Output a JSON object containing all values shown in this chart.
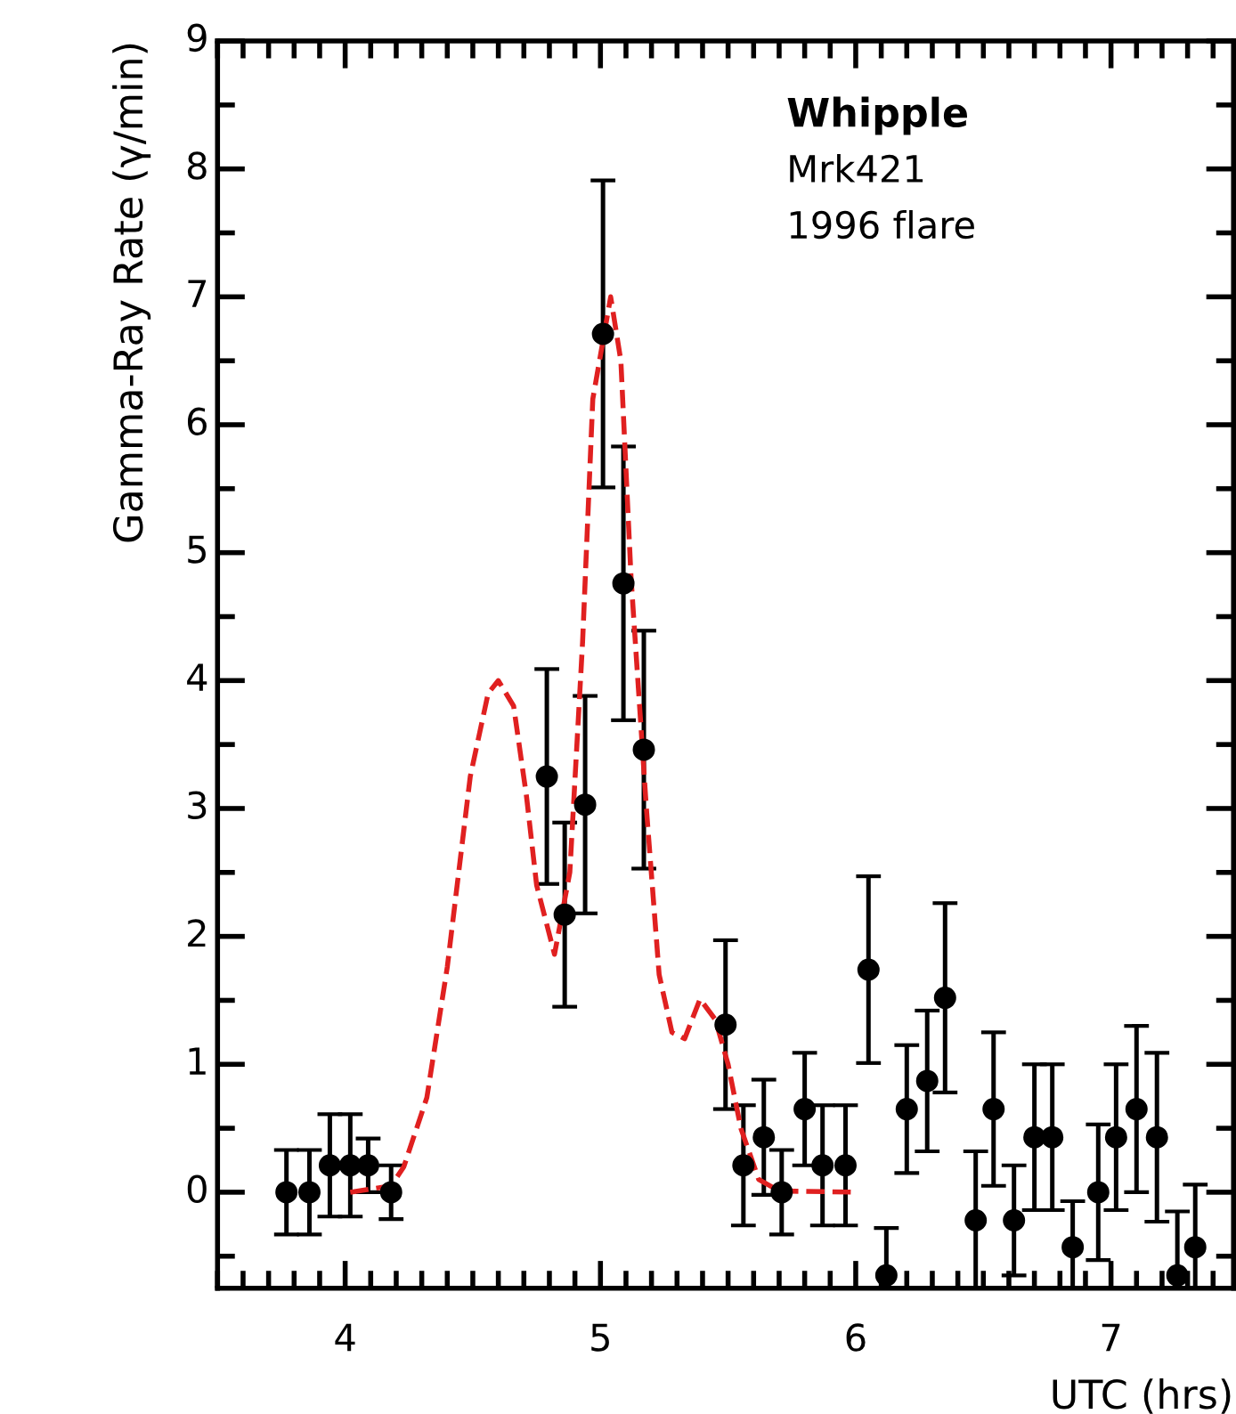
{
  "chart_data": {
    "type": "scatter",
    "xlabel": "UTC (hrs)",
    "ylabel": "Gamma-Ray Rate (γ/min)",
    "annotations": [
      "Whipple",
      "Mrk421",
      "1996 flare"
    ],
    "xlim": [
      3.5,
      7.48
    ],
    "xticks": [
      4,
      5,
      6,
      7
    ],
    "ylim": [
      -0.75,
      9
    ],
    "yticks": [
      0,
      1,
      2,
      3,
      4,
      5,
      6,
      7,
      8,
      9
    ],
    "grid": false,
    "legend": false,
    "series": [
      {
        "type": "scatter",
        "color": "#000000",
        "marker": "circle",
        "x": [
          3.77,
          3.86,
          3.94,
          4.02,
          4.09,
          4.18,
          4.79,
          4.86,
          4.94,
          5.01,
          5.09,
          5.17,
          5.49,
          5.56,
          5.64,
          5.71,
          5.8,
          5.87,
          5.96,
          6.05,
          6.12,
          6.2,
          6.28,
          6.35,
          6.47,
          6.54,
          6.62,
          6.7,
          6.77,
          6.85,
          6.95,
          7.02,
          7.1,
          7.18,
          7.26,
          7.33
        ],
        "values": [
          0,
          0,
          0.21,
          0.21,
          0.21,
          0,
          3.25,
          2.17,
          3.03,
          6.71,
          4.76,
          3.46,
          1.31,
          0.21,
          0.43,
          0,
          0.65,
          0.21,
          0.21,
          1.74,
          -0.65,
          0.65,
          0.87,
          1.52,
          -0.22,
          0.65,
          -0.22,
          0.43,
          0.43,
          -0.43,
          0,
          0.43,
          0.65,
          0.43,
          -0.65,
          -0.43
        ],
        "errors": [
          0.33,
          0.33,
          0.4,
          0.4,
          0.21,
          0.21,
          0.84,
          0.72,
          0.85,
          1.2,
          1.07,
          0.93,
          0.66,
          0.47,
          0.45,
          0.33,
          0.44,
          0.47,
          0.47,
          0.73,
          0.37,
          0.5,
          0.55,
          0.74,
          0.54,
          0.6,
          0.43,
          0.57,
          0.57,
          0.36,
          0.53,
          0.57,
          0.65,
          0.66,
          0.5,
          0.49
        ]
      },
      {
        "type": "line",
        "color": "#e02020",
        "marker": "none",
        "line_style": "dashed",
        "x": [
          4.02,
          4.18,
          4.23,
          4.32,
          4.4,
          4.49,
          4.56,
          4.6,
          4.66,
          4.71,
          4.75,
          4.82,
          4.88,
          4.93,
          4.97,
          5.04,
          5.08,
          5.12,
          5.18,
          5.23,
          5.28,
          5.33,
          5.39,
          5.45,
          5.5,
          5.55,
          5.62,
          5.7,
          6.0
        ],
        "values": [
          0,
          0.05,
          0.2,
          0.74,
          1.76,
          3.25,
          3.9,
          4.0,
          3.8,
          3.1,
          2.4,
          1.86,
          2.5,
          4.3,
          6.2,
          7.0,
          6.5,
          4.8,
          3.0,
          1.7,
          1.25,
          1.2,
          1.51,
          1.35,
          1.0,
          0.5,
          0.1,
          0.01,
          0
        ]
      }
    ]
  }
}
